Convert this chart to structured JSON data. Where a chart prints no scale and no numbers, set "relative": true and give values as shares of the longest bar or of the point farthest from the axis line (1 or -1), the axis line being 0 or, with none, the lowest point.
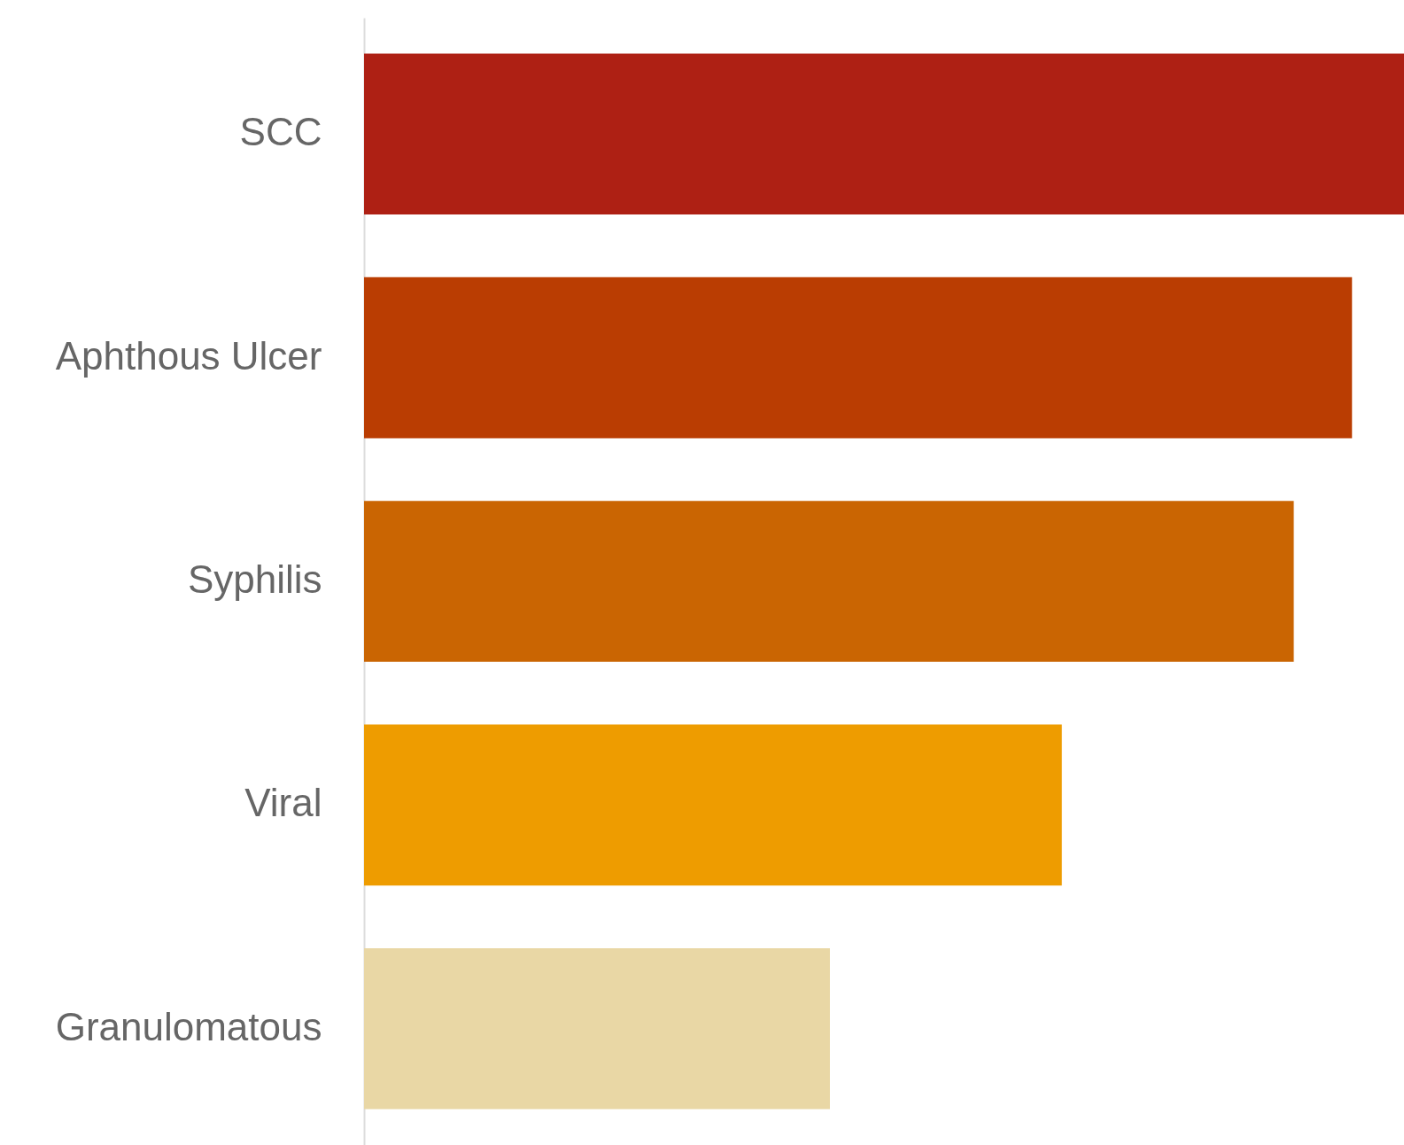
{
  "chart_data": {
    "type": "bar",
    "orientation": "horizontal",
    "relative": true,
    "categories": [
      "SCC",
      "Aphthous Ulcer",
      "Syphilis",
      "Viral",
      "Granulomatous"
    ],
    "values": [
      1,
      0.95,
      0.894,
      0.671,
      0.448
    ],
    "colors": [
      "#ae2014",
      "#ba3d02",
      "#ca6502",
      "#ee9c00",
      "#e9d7a5"
    ]
  }
}
